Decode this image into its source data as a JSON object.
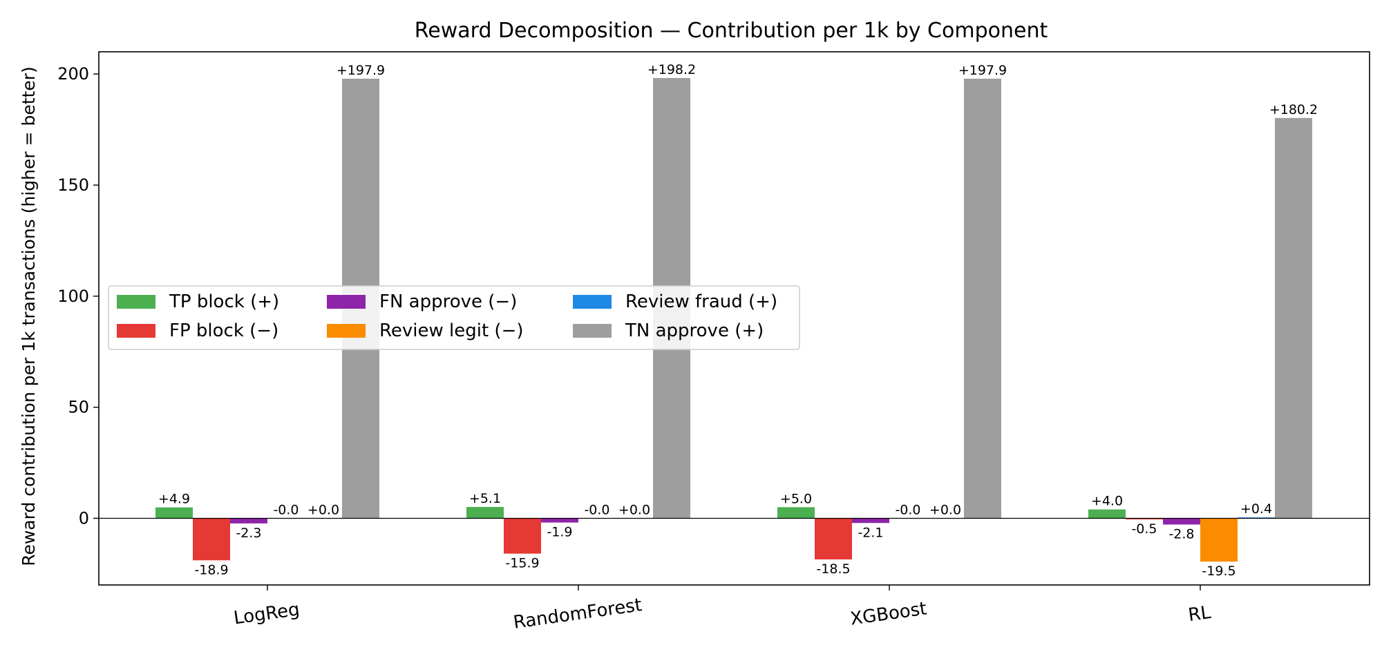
{
  "chart_data": {
    "type": "bar",
    "title": "Reward Decomposition — Contribution per 1k by Component",
    "xlabel": "",
    "ylabel": "Reward contribution per 1k transactions (higher = better)",
    "ylim": [
      -30,
      210
    ],
    "yticks": [
      "0",
      "50",
      "100",
      "150",
      "200"
    ],
    "ytick_values": [
      0,
      50,
      100,
      150,
      200
    ],
    "categories": [
      "LogReg",
      "RandomForest",
      "XGBoost",
      "RL"
    ],
    "grid": false,
    "legend_placement": "center-left",
    "series": [
      {
        "name": "TP block (+)",
        "color": "#4caf50",
        "values": [
          4.9,
          5.1,
          5.0,
          4.0
        ],
        "labels": [
          "+4.9",
          "+5.1",
          "+5.0",
          "+4.0"
        ]
      },
      {
        "name": "FP block (−)",
        "color": "#e53935",
        "values": [
          -18.9,
          -15.9,
          -18.5,
          -0.5
        ],
        "labels": [
          "-18.9",
          "-15.9",
          "-18.5",
          "-0.5"
        ]
      },
      {
        "name": "FN approve (−)",
        "color": "#8e24aa",
        "values": [
          -2.3,
          -1.9,
          -2.1,
          -2.8
        ],
        "labels": [
          "-2.3",
          "-1.9",
          "-2.1",
          "-2.8"
        ]
      },
      {
        "name": "Review legit (−)",
        "color": "#fb8c00",
        "values": [
          0,
          0,
          0,
          -19.5
        ],
        "labels": [
          "-0.0",
          "-0.0",
          "-0.0",
          "-19.5"
        ]
      },
      {
        "name": "Review fraud (+)",
        "color": "#1e88e5",
        "values": [
          0,
          0,
          0,
          0.4
        ],
        "labels": [
          "+0.0",
          "+0.0",
          "+0.0",
          "+0.4"
        ]
      },
      {
        "name": "TN approve (+)",
        "color": "#9e9e9e",
        "values": [
          197.9,
          198.2,
          197.9,
          180.2
        ],
        "labels": [
          "+197.9",
          "+198.2",
          "+197.9",
          "+180.2"
        ]
      }
    ]
  }
}
